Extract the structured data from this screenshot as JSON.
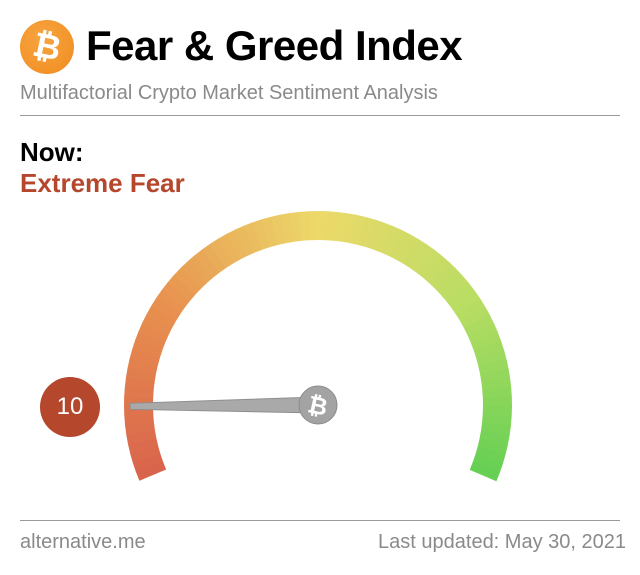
{
  "header": {
    "logo_icon": "bitcoin-icon",
    "title": "Fear & Greed Index",
    "subtitle": "Multifactorial Crypto Market Sentiment Analysis"
  },
  "current": {
    "label": "Now:",
    "classification": "Extreme Fear",
    "value": "10",
    "value_numeric": 10,
    "scale_min": 0,
    "scale_max": 100,
    "classification_color": "#b5472d"
  },
  "gauge": {
    "colors": [
      "#d9644c",
      "#e8924f",
      "#ecd96a",
      "#b9dd63",
      "#66d054"
    ],
    "needle_icon": "bitcoin-icon"
  },
  "footer": {
    "source": "alternative.me",
    "updated": "Last updated: May 30, 2021"
  }
}
